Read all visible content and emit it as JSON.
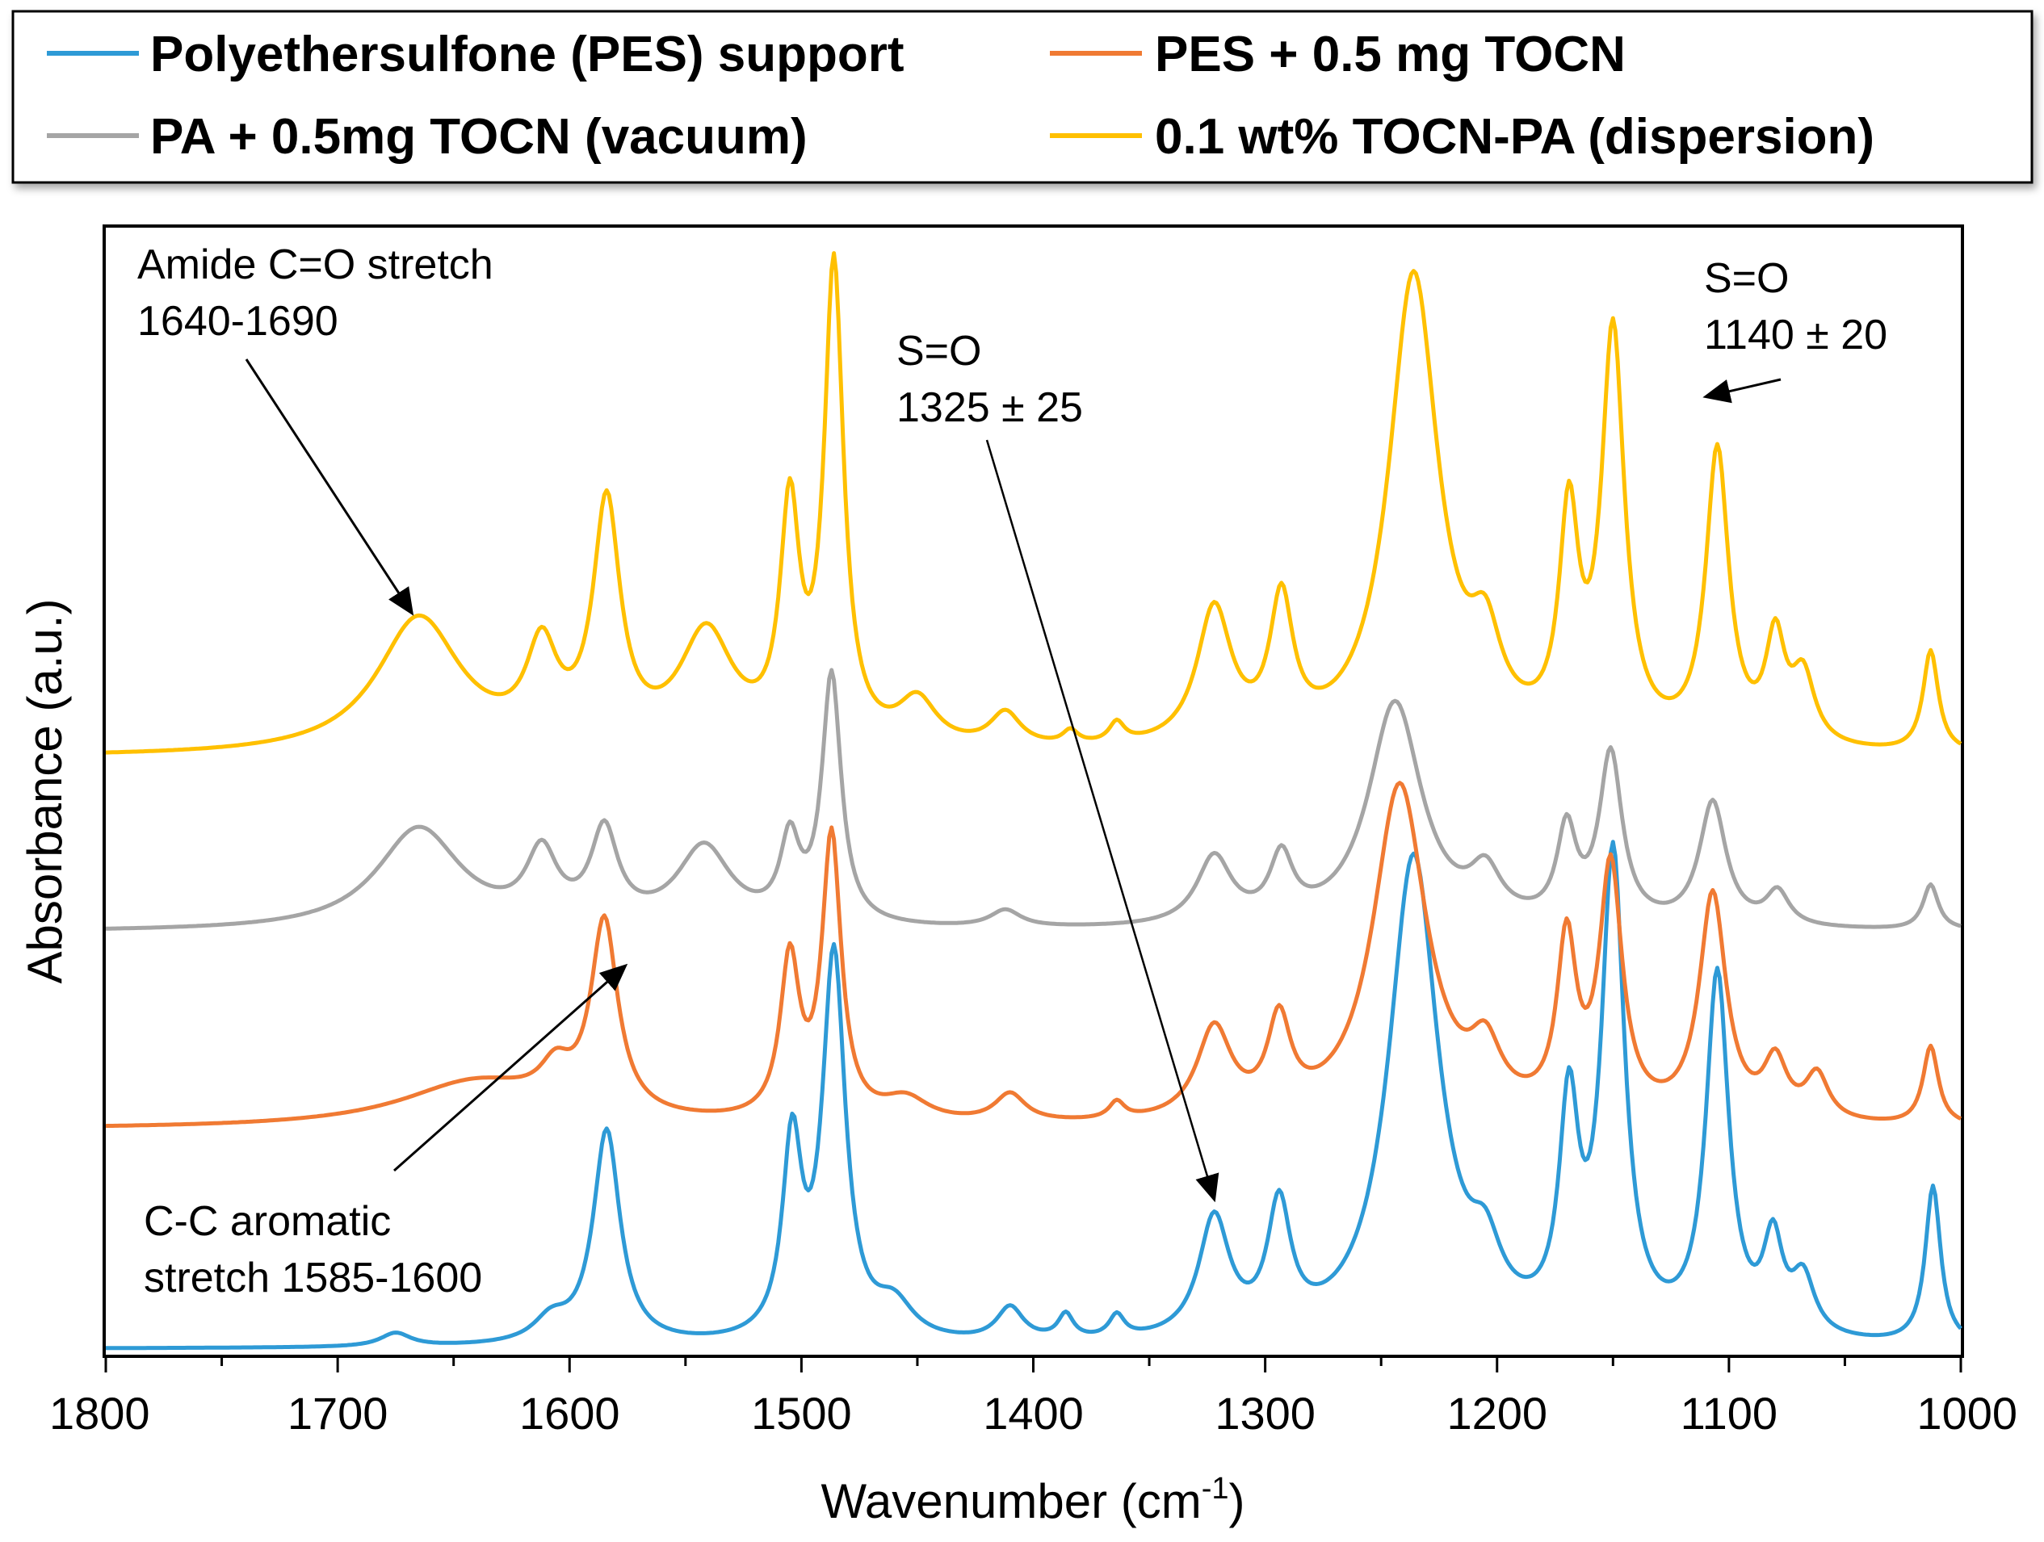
{
  "chart_data": {
    "type": "line",
    "title": "",
    "xlabel": "Wavenumber (cm",
    "xlabel_sup": "-1",
    "xlabel_end": ")",
    "ylabel": "Absorbance (a.u.)",
    "xlim": [
      1800,
      1000
    ],
    "x_reversed": true,
    "ylim": [
      0,
      1
    ],
    "yticks_shown": false,
    "xticks": [
      "1800",
      "1700",
      "1600",
      "1500",
      "1400",
      "1300",
      "1200",
      "1100",
      "1000"
    ],
    "legend_position": "top",
    "series": [
      {
        "name": "Polyethersulfone (PES) support",
        "color": "#2E9AD6",
        "baseline": 0.005,
        "peaks": [
          {
            "x": 1675,
            "h": 0.012,
            "w": 8
          },
          {
            "x": 1608,
            "h": 0.02,
            "w": 9
          },
          {
            "x": 1584,
            "h": 0.19,
            "w": 7
          },
          {
            "x": 1504,
            "h": 0.17,
            "w": 5
          },
          {
            "x": 1486,
            "h": 0.34,
            "w": 6
          },
          {
            "x": 1460,
            "h": 0.03,
            "w": 10
          },
          {
            "x": 1410,
            "h": 0.03,
            "w": 7
          },
          {
            "x": 1386,
            "h": 0.022,
            "w": 4
          },
          {
            "x": 1364,
            "h": 0.02,
            "w": 4
          },
          {
            "x": 1322,
            "h": 0.105,
            "w": 8
          },
          {
            "x": 1294,
            "h": 0.11,
            "w": 6
          },
          {
            "x": 1236,
            "h": 0.43,
            "w": 13
          },
          {
            "x": 1205,
            "h": 0.05,
            "w": 8
          },
          {
            "x": 1169,
            "h": 0.19,
            "w": 5
          },
          {
            "x": 1150,
            "h": 0.42,
            "w": 6
          },
          {
            "x": 1105,
            "h": 0.32,
            "w": 6
          },
          {
            "x": 1081,
            "h": 0.08,
            "w": 5
          },
          {
            "x": 1068,
            "h": 0.05,
            "w": 6
          },
          {
            "x": 1012,
            "h": 0.14,
            "w": 4
          }
        ]
      },
      {
        "name": "PES + 0.5 mg TOCN",
        "color": "#F07A33",
        "baseline": 0.2,
        "peaks": [
          {
            "x": 1640,
            "h": 0.04,
            "w": 40
          },
          {
            "x": 1606,
            "h": 0.03,
            "w": 8
          },
          {
            "x": 1585,
            "h": 0.17,
            "w": 7
          },
          {
            "x": 1505,
            "h": 0.14,
            "w": 5
          },
          {
            "x": 1487,
            "h": 0.25,
            "w": 5
          },
          {
            "x": 1455,
            "h": 0.02,
            "w": 12
          },
          {
            "x": 1410,
            "h": 0.025,
            "w": 8
          },
          {
            "x": 1364,
            "h": 0.015,
            "w": 4
          },
          {
            "x": 1322,
            "h": 0.08,
            "w": 9
          },
          {
            "x": 1294,
            "h": 0.08,
            "w": 6
          },
          {
            "x": 1242,
            "h": 0.3,
            "w": 14
          },
          {
            "x": 1205,
            "h": 0.05,
            "w": 8
          },
          {
            "x": 1170,
            "h": 0.15,
            "w": 5
          },
          {
            "x": 1151,
            "h": 0.22,
            "w": 6
          },
          {
            "x": 1107,
            "h": 0.2,
            "w": 7
          },
          {
            "x": 1080,
            "h": 0.05,
            "w": 6
          },
          {
            "x": 1062,
            "h": 0.04,
            "w": 6
          },
          {
            "x": 1013,
            "h": 0.07,
            "w": 4
          }
        ]
      },
      {
        "name": "PA + 0.5mg TOCN (vacuum)",
        "color": "#A5A5A5",
        "baseline": 0.375,
        "peaks": [
          {
            "x": 1665,
            "h": 0.09,
            "w": 22
          },
          {
            "x": 1612,
            "h": 0.06,
            "w": 8
          },
          {
            "x": 1585,
            "h": 0.08,
            "w": 7
          },
          {
            "x": 1542,
            "h": 0.07,
            "w": 14
          },
          {
            "x": 1505,
            "h": 0.07,
            "w": 5
          },
          {
            "x": 1487,
            "h": 0.22,
            "w": 5
          },
          {
            "x": 1412,
            "h": 0.015,
            "w": 8
          },
          {
            "x": 1322,
            "h": 0.06,
            "w": 9
          },
          {
            "x": 1293,
            "h": 0.055,
            "w": 6
          },
          {
            "x": 1244,
            "h": 0.2,
            "w": 14
          },
          {
            "x": 1205,
            "h": 0.04,
            "w": 8
          },
          {
            "x": 1170,
            "h": 0.08,
            "w": 5
          },
          {
            "x": 1151,
            "h": 0.15,
            "w": 6
          },
          {
            "x": 1107,
            "h": 0.11,
            "w": 7
          },
          {
            "x": 1079,
            "h": 0.03,
            "w": 6
          },
          {
            "x": 1013,
            "h": 0.04,
            "w": 4
          }
        ]
      },
      {
        "name": "0.1 wt% TOCN-PA (dispersion)",
        "color": "#FFC000",
        "baseline": 0.53,
        "peaks": [
          {
            "x": 1665,
            "h": 0.12,
            "w": 22
          },
          {
            "x": 1612,
            "h": 0.08,
            "w": 8
          },
          {
            "x": 1584,
            "h": 0.21,
            "w": 7
          },
          {
            "x": 1541,
            "h": 0.1,
            "w": 14
          },
          {
            "x": 1505,
            "h": 0.2,
            "w": 5
          },
          {
            "x": 1486,
            "h": 0.42,
            "w": 5
          },
          {
            "x": 1450,
            "h": 0.04,
            "w": 10
          },
          {
            "x": 1412,
            "h": 0.03,
            "w": 8
          },
          {
            "x": 1384,
            "h": 0.012,
            "w": 4
          },
          {
            "x": 1364,
            "h": 0.018,
            "w": 4
          },
          {
            "x": 1322,
            "h": 0.12,
            "w": 9
          },
          {
            "x": 1293,
            "h": 0.12,
            "w": 6
          },
          {
            "x": 1236,
            "h": 0.42,
            "w": 13
          },
          {
            "x": 1205,
            "h": 0.07,
            "w": 8
          },
          {
            "x": 1169,
            "h": 0.19,
            "w": 5
          },
          {
            "x": 1150,
            "h": 0.36,
            "w": 6
          },
          {
            "x": 1105,
            "h": 0.26,
            "w": 6
          },
          {
            "x": 1080,
            "h": 0.09,
            "w": 5
          },
          {
            "x": 1068,
            "h": 0.06,
            "w": 6
          },
          {
            "x": 1013,
            "h": 0.09,
            "w": 4
          }
        ]
      }
    ],
    "annotations": [
      {
        "id": "amide",
        "lines": [
          "Amide C=O stretch",
          "1640-1690"
        ],
        "target_x": 1668,
        "target_y": 0.658
      },
      {
        "id": "so1",
        "lines": [
          "S=O",
          "1325 ± 25"
        ],
        "target_x": 1322,
        "target_y": 0.138
      },
      {
        "id": "so2",
        "lines": [
          "S=O",
          "1140 ± 20"
        ],
        "target_x": 1110,
        "target_y": 0.85
      },
      {
        "id": "cc",
        "lines": [
          "C-C aromatic",
          "stretch 1585-1600"
        ],
        "target_x": 1576,
        "target_y": 0.345
      }
    ]
  }
}
